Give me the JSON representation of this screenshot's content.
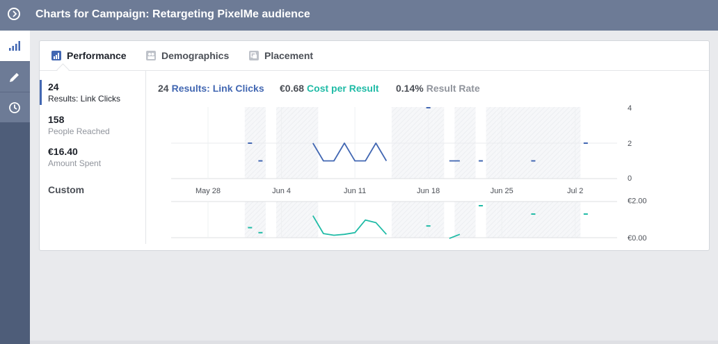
{
  "header": {
    "title": "Charts for Campaign: Retargeting PixelMe audience"
  },
  "left_nav": {
    "items": [
      "chart-icon",
      "pencil-icon",
      "clock-icon"
    ]
  },
  "tabs": [
    {
      "label": "Performance",
      "active": true
    },
    {
      "label": "Demographics",
      "active": false
    },
    {
      "label": "Placement",
      "active": false
    }
  ],
  "stats": [
    {
      "value": "24",
      "label": "Results: Link Clicks"
    },
    {
      "value": "158",
      "label": "People Reached"
    },
    {
      "value": "€16.40",
      "label": "Amount Spent"
    }
  ],
  "custom_label": "Custom",
  "legend": [
    {
      "value": "24",
      "label": "Results: Link Clicks",
      "color": "#4267b2"
    },
    {
      "value": "€0.68",
      "label": "Cost per Result",
      "color": "#1fbba6"
    },
    {
      "value": "0.14%",
      "label": "Result Rate",
      "color": "#90949c"
    }
  ],
  "chart_data": [
    {
      "type": "line",
      "series": [
        {
          "name": "Results: Link Clicks",
          "color": "#4267b2",
          "segments": [
            [
              {
                "x": "2017-06-01",
                "y": 2
              }
            ],
            [
              {
                "x": "2017-06-02",
                "y": 1
              }
            ],
            [
              {
                "x": "2017-06-07",
                "y": 2
              },
              {
                "x": "2017-06-08",
                "y": 1
              },
              {
                "x": "2017-06-09",
                "y": 1
              },
              {
                "x": "2017-06-10",
                "y": 2
              },
              {
                "x": "2017-06-11",
                "y": 1
              },
              {
                "x": "2017-06-12",
                "y": 1
              },
              {
                "x": "2017-06-13",
                "y": 2
              },
              {
                "x": "2017-06-14",
                "y": 1
              }
            ],
            [
              {
                "x": "2017-06-18",
                "y": 4
              }
            ],
            [
              {
                "x": "2017-06-20",
                "y": 1
              },
              {
                "x": "2017-06-21",
                "y": 1
              }
            ],
            [
              {
                "x": "2017-06-23",
                "y": 1
              }
            ],
            [
              {
                "x": "2017-06-28",
                "y": 1
              }
            ],
            [
              {
                "x": "2017-07-03",
                "y": 2
              }
            ]
          ]
        }
      ],
      "x_ticks": [
        "May 28",
        "Jun 4",
        "Jun 11",
        "Jun 18",
        "Jun 25",
        "Jul 2"
      ],
      "y_ticks": [
        "4",
        "2",
        "0"
      ],
      "ylim": [
        0,
        4
      ]
    },
    {
      "type": "line",
      "series": [
        {
          "name": "Cost per Result",
          "color": "#1fbba6",
          "segments": [
            [
              {
                "x": "2017-06-01",
                "y": 0.54
              }
            ],
            [
              {
                "x": "2017-06-02",
                "y": 0.27
              }
            ],
            [
              {
                "x": "2017-06-07",
                "y": 1.18
              },
              {
                "x": "2017-06-08",
                "y": 0.22
              },
              {
                "x": "2017-06-09",
                "y": 0.13
              },
              {
                "x": "2017-06-10",
                "y": 0.18
              },
              {
                "x": "2017-06-11",
                "y": 0.27
              },
              {
                "x": "2017-06-12",
                "y": 0.95
              },
              {
                "x": "2017-06-13",
                "y": 0.81
              },
              {
                "x": "2017-06-14",
                "y": 0.18
              }
            ],
            [
              {
                "x": "2017-06-18",
                "y": 0.63
              }
            ],
            [
              {
                "x": "2017-06-20",
                "y": -0.04
              },
              {
                "x": "2017-06-21",
                "y": 0.18
              }
            ],
            [
              {
                "x": "2017-06-23",
                "y": 1.72
              }
            ],
            [
              {
                "x": "2017-06-28",
                "y": 1.27
              }
            ],
            [
              {
                "x": "2017-07-03",
                "y": 1.27
              }
            ]
          ]
        }
      ],
      "y_ticks": [
        "€2.00",
        "€0.00"
      ],
      "ylim": [
        0,
        2
      ]
    }
  ],
  "shaded_days": [
    "2017-06-01",
    "2017-06-02",
    "2017-06-04",
    "2017-06-05",
    "2017-06-06",
    "2017-06-07",
    "2017-06-15",
    "2017-06-16",
    "2017-06-17",
    "2017-06-18",
    "2017-06-19",
    "2017-06-21",
    "2017-06-22",
    "2017-06-24",
    "2017-06-25",
    "2017-06-26",
    "2017-06-27",
    "2017-06-28",
    "2017-06-29",
    "2017-06-30",
    "2017-07-01",
    "2017-07-02"
  ]
}
